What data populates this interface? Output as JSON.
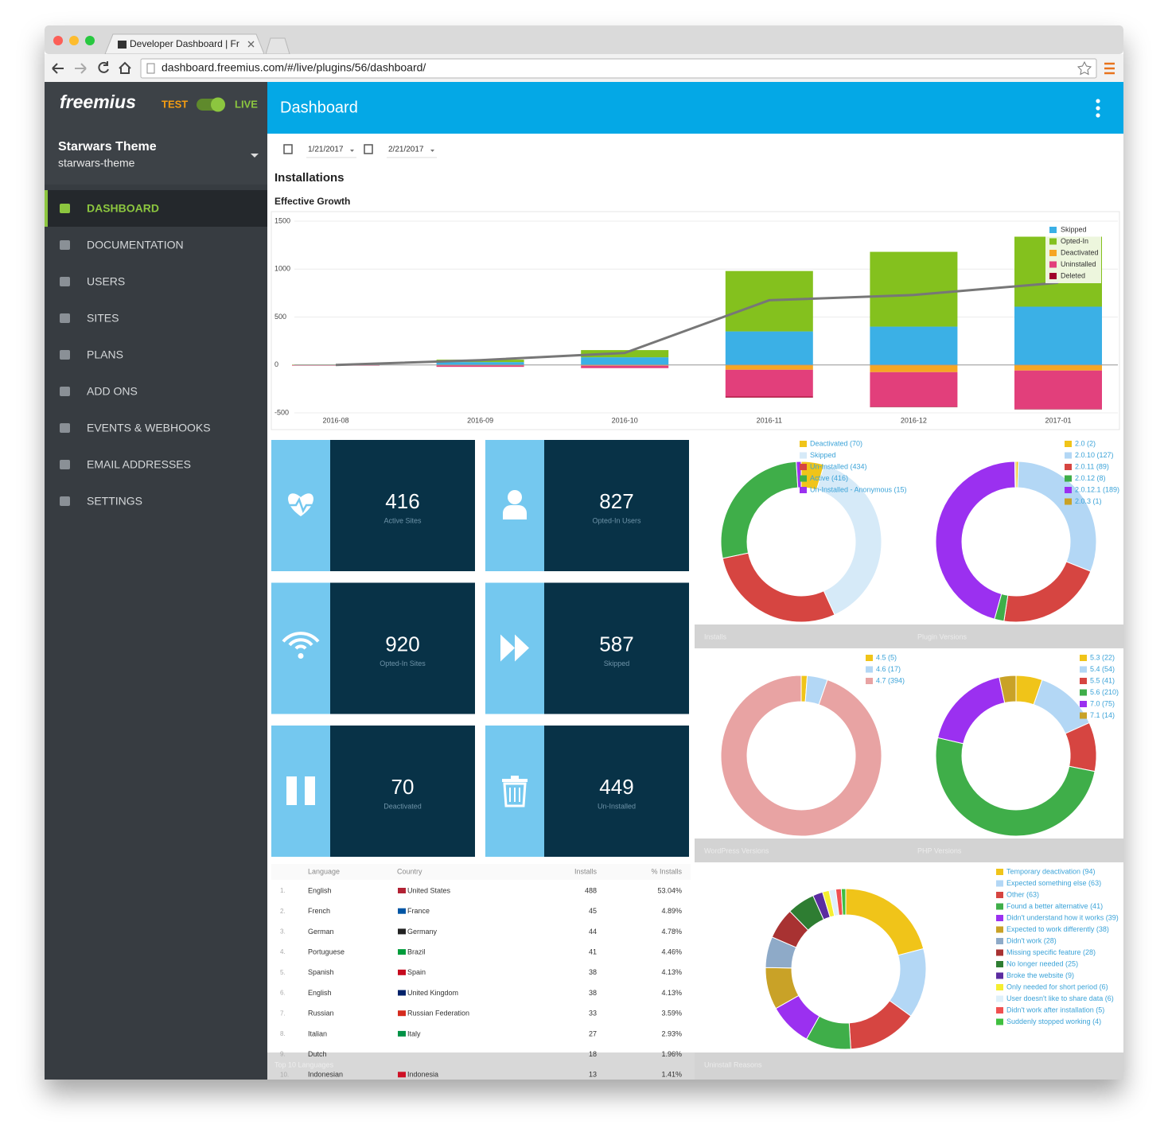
{
  "browser": {
    "tab_title": "Developer Dashboard | Fr",
    "url": "dashboard.freemius.com/#/live/plugins/56/dashboard/"
  },
  "sidebar": {
    "logo": "freemius",
    "mode_test": "TEST",
    "mode_live": "LIVE",
    "product_name": "Starwars Theme",
    "product_slug": "starwars-theme",
    "menu": [
      "DASHBOARD",
      "DOCUMENTATION",
      "USERS",
      "SITES",
      "PLANS",
      "ADD ONS",
      "EVENTS & WEBHOOKS",
      "EMAIL ADDRESSES",
      "SETTINGS"
    ],
    "active": 0
  },
  "header": {
    "title": "Dashboard"
  },
  "date_range": {
    "from": "1/21/2017",
    "to": "2/21/2017"
  },
  "section_title": "Installations",
  "stats": [
    {
      "value": 416,
      "label": "Active Sites"
    },
    {
      "value": 827,
      "label": "Opted-In Users"
    },
    {
      "value": 920,
      "label": "Opted-In Sites"
    },
    {
      "value": 587,
      "label": "Skipped"
    },
    {
      "value": 70,
      "label": "Deactivated"
    },
    {
      "value": 449,
      "label": "Un-Installed"
    }
  ],
  "table": {
    "title": "Top 10 Languages",
    "columns": [
      "Language",
      "Country",
      "Installs",
      "% Installs"
    ],
    "rows": [
      [
        "1.",
        "English",
        "United States",
        488,
        "53.04%"
      ],
      [
        "2.",
        "French",
        "France",
        45,
        "4.89%"
      ],
      [
        "3.",
        "German",
        "Germany",
        44,
        "4.78%"
      ],
      [
        "4.",
        "Portuguese",
        "Brazil",
        41,
        "4.46%"
      ],
      [
        "5.",
        "Spanish",
        "Spain",
        38,
        "4.13%"
      ],
      [
        "6.",
        "English",
        "United Kingdom",
        38,
        "4.13%"
      ],
      [
        "7.",
        "Russian",
        "Russian Federation",
        33,
        "3.59%"
      ],
      [
        "8.",
        "Italian",
        "Italy",
        27,
        "2.93%"
      ],
      [
        "9.",
        "Dutch",
        null,
        18,
        "1.96%"
      ],
      [
        "10.",
        "Indonesian",
        "Indonesia",
        13,
        "1.41%"
      ]
    ]
  },
  "chart_data": [
    {
      "type": "bar",
      "stacked": true,
      "title": "Effective Growth",
      "categories": [
        "2016-08",
        "2016-09",
        "2016-10",
        "2016-11",
        "2016-12",
        "2017-01"
      ],
      "series": [
        {
          "name": "Skipped",
          "color": "#3bb0e6",
          "values": [
            3,
            30,
            80,
            350,
            400,
            608
          ]
        },
        {
          "name": "Opted-In",
          "color": "#84c11e",
          "values": [
            2,
            25,
            75,
            630,
            780,
            730
          ]
        },
        {
          "name": "Deactivated",
          "color": "#f6a623",
          "values": [
            -2,
            -5,
            -8,
            -50,
            -75,
            -58
          ]
        },
        {
          "name": "Uninstalled",
          "color": "#e23f7b",
          "values": [
            -5,
            -15,
            -25,
            -280,
            -360,
            -400
          ]
        },
        {
          "name": "Deleted",
          "color": "#a0002a",
          "values": [
            0,
            0,
            0,
            -10,
            -5,
            -5
          ]
        }
      ],
      "line": {
        "color": "#777777",
        "values": [
          0,
          50,
          125,
          675,
          730,
          858
        ]
      },
      "ylim": [
        -500,
        1500
      ],
      "yticks": [
        -500,
        0,
        500,
        1000,
        1500
      ],
      "grid": true,
      "legend": "top-right"
    },
    {
      "type": "pie",
      "donut": true,
      "title": "Installs",
      "labels": [
        "Deactivated (70)",
        "Skipped",
        "Un-Installed (434)",
        "Active (416)",
        "Un-Installed - Anonymous (15)"
      ],
      "values": [
        70,
        587,
        434,
        416,
        15
      ],
      "colors": [
        "#f0c419",
        "#d6eaf8",
        "#d64541",
        "#3fae49",
        "#9b30f0"
      ]
    },
    {
      "type": "pie",
      "donut": true,
      "title": "Plugin Versions",
      "labels": [
        "2.0 (2)",
        "2.0.10 (127)",
        "2.0.11 (89)",
        "2.0.12 (8)",
        "2.0.12.1 (189)",
        "2.0.3 (1)"
      ],
      "values": [
        2,
        127,
        89,
        8,
        189,
        1
      ],
      "colors": [
        "#f0c419",
        "#b3d7f5",
        "#d64541",
        "#3fae49",
        "#9b30f0",
        "#c9a227"
      ]
    },
    {
      "type": "pie",
      "donut": true,
      "title": "WordPress Versions",
      "labels": [
        "4.5 (5)",
        "4.6 (17)",
        "4.7 (394)"
      ],
      "values": [
        5,
        17,
        394
      ],
      "colors": [
        "#f0c419",
        "#b3d7f5",
        "#e8a3a3"
      ]
    },
    {
      "type": "pie",
      "donut": true,
      "title": "PHP Versions",
      "labels": [
        "5.3 (22)",
        "5.4 (54)",
        "5.5 (41)",
        "5.6 (210)",
        "7.0 (75)",
        "7.1 (14)"
      ],
      "values": [
        22,
        54,
        41,
        210,
        75,
        14
      ],
      "colors": [
        "#f0c419",
        "#b3d7f5",
        "#d64541",
        "#3fae49",
        "#9b30f0",
        "#c9a227"
      ]
    },
    {
      "type": "pie",
      "donut": true,
      "title": "Uninstall Reasons",
      "labels": [
        "Temporary deactivation (94)",
        "Expected something else (63)",
        "Other (63)",
        "Found a better alternative (41)",
        "Didn't understand how it works (39)",
        "Expected to work differently (38)",
        "Didn't work (28)",
        "Missing specific feature (28)",
        "No longer needed (25)",
        "Broke the website (9)",
        "Only needed for short period (6)",
        "User doesn't like to share data (6)",
        "Didn't work after installation (5)",
        "Suddenly stopped working (4)"
      ],
      "values": [
        94,
        63,
        63,
        41,
        39,
        38,
        28,
        28,
        25,
        9,
        6,
        6,
        5,
        4
      ],
      "colors": [
        "#f0c419",
        "#b3d7f5",
        "#d64541",
        "#3fae49",
        "#9b30f0",
        "#c9a227",
        "#8eaac8",
        "#a83232",
        "#2e7d32",
        "#5b2ca0",
        "#f5ee30",
        "#dff0fa",
        "#f05050",
        "#3fbf3f"
      ]
    }
  ]
}
